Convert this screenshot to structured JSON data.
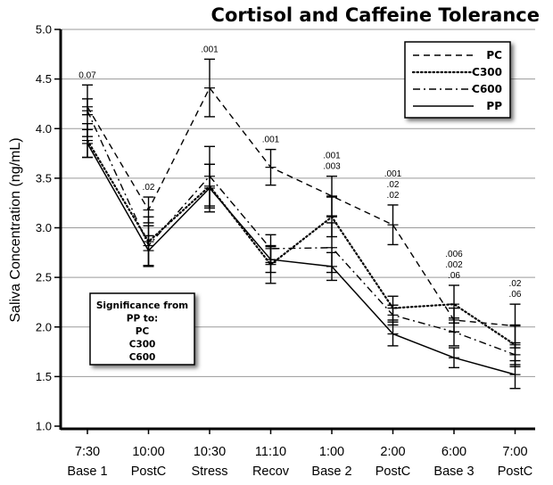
{
  "chart_data": {
    "type": "line",
    "title": "Cortisol and Caffeine Tolerance",
    "xlabel": "",
    "ylabel": "Saliva Concentration (ng/mL)",
    "ylim": [
      1.0,
      5.0
    ],
    "yticks": [
      "1.0",
      "1.5",
      "2.0",
      "2.5",
      "3.0",
      "3.5",
      "4.0",
      "4.5",
      "5.0"
    ],
    "grid": true,
    "legend_position": "top-right",
    "categories": [
      {
        "time": "7:30",
        "phase": "Base 1"
      },
      {
        "time": "10:00",
        "phase": "PostC"
      },
      {
        "time": "10:30",
        "phase": "Stress"
      },
      {
        "time": "11:10",
        "phase": "Recov"
      },
      {
        "time": "1:00",
        "phase": "Base 2"
      },
      {
        "time": "2:00",
        "phase": "PostC"
      },
      {
        "time": "6:00",
        "phase": "Base 3"
      },
      {
        "time": "7:00",
        "phase": "PostC"
      }
    ],
    "series": [
      {
        "name": "PC",
        "style": "dashed",
        "values": [
          4.22,
          3.18,
          4.41,
          3.61,
          3.32,
          3.03,
          2.07,
          2.01
        ],
        "error": [
          0.08,
          0.13,
          0.29,
          0.18,
          0.2,
          0.2,
          0.12,
          0.22
        ]
      },
      {
        "name": "C300",
        "style": "dotted",
        "values": [
          3.88,
          2.86,
          3.42,
          2.63,
          3.11,
          2.19,
          2.23,
          1.82
        ],
        "error": [
          0.17,
          0.25,
          0.22,
          0.19,
          0.2,
          0.12,
          0.19,
          0.2
        ]
      },
      {
        "name": "C600",
        "style": "dashdot",
        "values": [
          4.18,
          2.82,
          3.52,
          2.79,
          2.8,
          2.12,
          1.95,
          1.72
        ],
        "error": [
          0.26,
          0.2,
          0.3,
          0.14,
          0.25,
          0.1,
          0.14,
          0.12
        ]
      },
      {
        "name": "PP",
        "style": "solid",
        "values": [
          3.85,
          2.77,
          3.4,
          2.68,
          2.61,
          1.93,
          1.69,
          1.52
        ],
        "error": [
          0.14,
          0.15,
          0.24,
          0.13,
          0.14,
          0.12,
          0.1,
          0.14
        ]
      }
    ],
    "significance": [
      [
        "0.07"
      ],
      [
        ".02"
      ],
      [
        ".001"
      ],
      [
        ".001"
      ],
      [
        ".001",
        ".003"
      ],
      [
        ".001",
        ".02",
        ".02"
      ],
      [
        ".006",
        ".002",
        ".06"
      ],
      [
        ".02",
        ".06"
      ]
    ],
    "significance_box": [
      "Significance from",
      "PP to:",
      "PC",
      "C300",
      "C600"
    ]
  }
}
